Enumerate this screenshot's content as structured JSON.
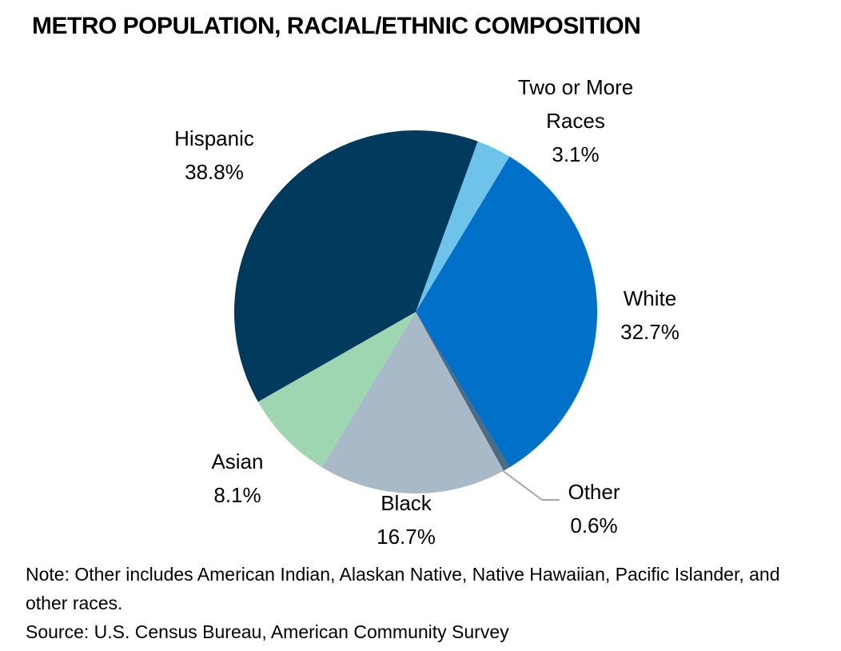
{
  "chart_data": {
    "type": "pie",
    "title": "METRO POPULATION, RACIAL/ETHNIC COMPOSITION",
    "categories": [
      "Two or More Races",
      "White",
      "Other",
      "Black",
      "Asian",
      "Hispanic"
    ],
    "values": [
      3.1,
      32.7,
      0.6,
      16.7,
      8.1,
      38.8
    ],
    "value_labels": [
      "3.1%",
      "32.7%",
      "0.6%",
      "16.7%",
      "8.1%",
      "38.8%"
    ],
    "colors": [
      "#6ec3ea",
      "#0070c9",
      "#4a6b82",
      "#a8b9c8",
      "#9fd6b2",
      "#003a5c"
    ],
    "note": "Note: Other includes American Indian, Alaskan Native, Native Hawaiian, Pacific Islander, and other races.",
    "source": "Source: U.S. Census Bureau, American Community Survey"
  }
}
